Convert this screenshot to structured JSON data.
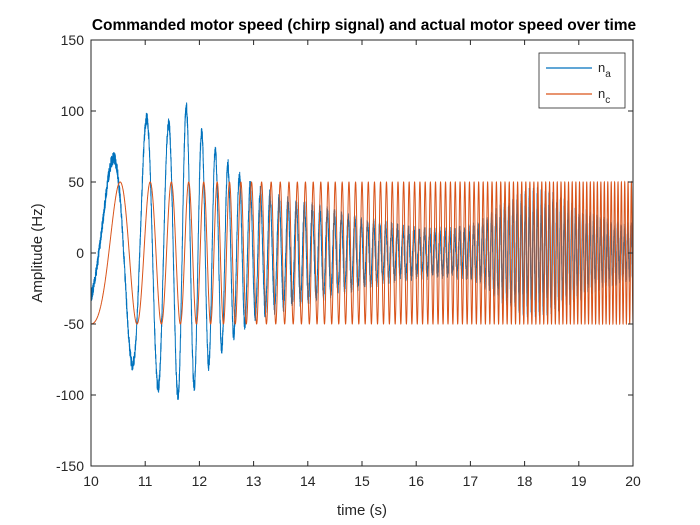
{
  "chart_data": {
    "type": "line",
    "title": "Commanded motor speed (chirp signal) and actual motor speed over time",
    "xlabel": "time (s)",
    "ylabel": "Amplitude (Hz)",
    "xlim": [
      10,
      20
    ],
    "ylim": [
      -150,
      150
    ],
    "xticks": [
      10,
      11,
      12,
      13,
      14,
      15,
      16,
      17,
      18,
      19,
      20
    ],
    "yticks": [
      -150,
      -100,
      -50,
      0,
      50,
      100,
      150
    ],
    "grid": false,
    "legend_position": "top-right",
    "series": [
      {
        "name": "n_a",
        "label_base": "n",
        "label_sub": "a",
        "color": "#0072BD",
        "envelope_t": [
          10.0,
          10.3,
          10.5,
          10.8,
          11.1,
          11.4,
          11.7,
          12.0,
          12.3,
          12.7,
          13.0,
          13.5,
          14.0,
          14.5,
          15.0,
          15.5,
          16.0,
          16.5,
          17.0,
          17.3,
          17.6,
          18.0,
          18.3,
          18.6,
          19.0,
          19.3,
          19.6,
          20.0
        ],
        "envelope_a": [
          60,
          65,
          68,
          80,
          100,
          90,
          106,
          88,
          72,
          55,
          45,
          38,
          33,
          27,
          22,
          18,
          15,
          14,
          16,
          22,
          32,
          42,
          42,
          38,
          30,
          24,
          20,
          17
        ]
      },
      {
        "name": "n_c",
        "label_base": "n",
        "label_sub": "c",
        "color": "#D95319",
        "amplitude": 50,
        "start_frequency_hz": 0.5,
        "sweep_rate_hz_per_s": 1.6,
        "start_time_s": 10,
        "end_time_s": 20
      }
    ]
  }
}
